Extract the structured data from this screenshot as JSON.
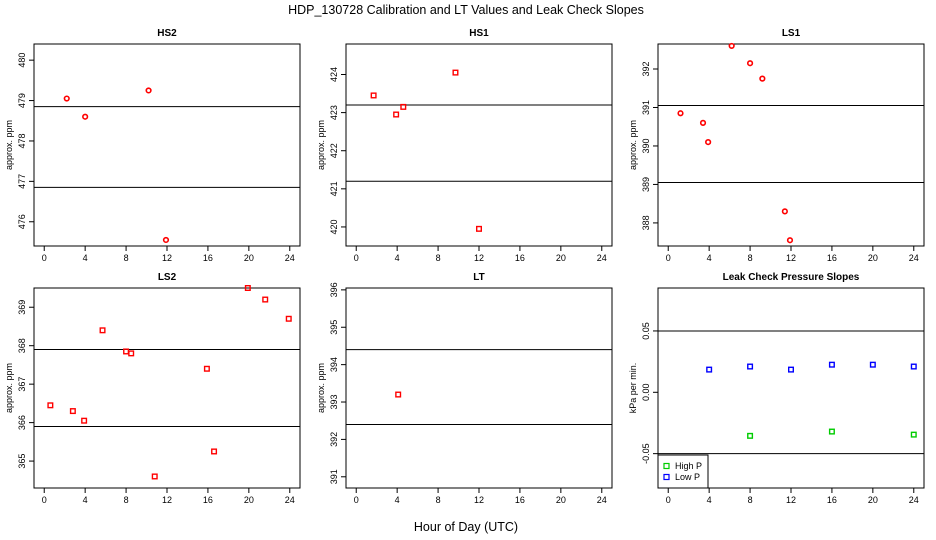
{
  "main_title": "HDP_130728  Calibration and LT Values and Leak Check Slopes",
  "x_axis_label": "Hour of Day (UTC)",
  "colors": {
    "points": "#ff0000",
    "high_p": "#00cc00",
    "low_p": "#0000ff",
    "lines": "#000000"
  },
  "chart_data": [
    {
      "type": "scatter",
      "title": "HS2",
      "ylabel": "approx. ppm",
      "xlim": [
        -1,
        25
      ],
      "ylim": [
        475.4,
        480.4
      ],
      "xticks": [
        0,
        4,
        8,
        12,
        16,
        20,
        24
      ],
      "yticks": [
        476,
        477,
        478,
        479,
        480
      ],
      "hlines": [
        478.85,
        476.85
      ],
      "series": [
        {
          "marker": "circle",
          "color": "#ff0000",
          "points": [
            [
              2.2,
              479.05
            ],
            [
              4.0,
              478.6
            ],
            [
              10.2,
              479.25
            ],
            [
              11.9,
              475.55
            ]
          ]
        }
      ]
    },
    {
      "type": "scatter",
      "title": "HS1",
      "ylabel": "approx. ppm",
      "xlim": [
        -1,
        25
      ],
      "ylim": [
        419.5,
        424.8
      ],
      "xticks": [
        0,
        4,
        8,
        12,
        16,
        20,
        24
      ],
      "yticks": [
        420,
        421,
        422,
        423,
        424
      ],
      "hlines": [
        423.2,
        421.2
      ],
      "series": [
        {
          "marker": "square",
          "color": "#ff0000",
          "points": [
            [
              1.7,
              423.45
            ],
            [
              3.9,
              422.95
            ],
            [
              4.6,
              423.15
            ],
            [
              9.7,
              424.05
            ],
            [
              12.0,
              419.95
            ]
          ]
        }
      ]
    },
    {
      "type": "scatter",
      "title": "LS1",
      "ylabel": "approx. ppm",
      "xlim": [
        -1,
        25
      ],
      "ylim": [
        387.4,
        392.65
      ],
      "xticks": [
        0,
        4,
        8,
        12,
        16,
        20,
        24
      ],
      "yticks": [
        388,
        389,
        390,
        391,
        392
      ],
      "hlines": [
        391.05,
        389.05
      ],
      "series": [
        {
          "marker": "circle",
          "color": "#ff0000",
          "points": [
            [
              1.2,
              390.85
            ],
            [
              3.4,
              390.6
            ],
            [
              3.9,
              390.1
            ],
            [
              6.2,
              392.6
            ],
            [
              8.0,
              392.15
            ],
            [
              9.2,
              391.75
            ],
            [
              11.4,
              388.3
            ],
            [
              11.9,
              387.55
            ]
          ]
        }
      ]
    },
    {
      "type": "scatter",
      "title": "LS2",
      "ylabel": "approx. ppm",
      "xlim": [
        -1,
        25
      ],
      "ylim": [
        364.3,
        369.5
      ],
      "xticks": [
        0,
        4,
        8,
        12,
        16,
        20,
        24
      ],
      "yticks": [
        365,
        366,
        367,
        368,
        369
      ],
      "hlines": [
        367.9,
        365.9
      ],
      "series": [
        {
          "marker": "square",
          "color": "#ff0000",
          "points": [
            [
              0.6,
              366.45
            ],
            [
              2.8,
              366.3
            ],
            [
              3.9,
              366.05
            ],
            [
              5.7,
              368.4
            ],
            [
              8.0,
              367.85
            ],
            [
              8.5,
              367.8
            ],
            [
              10.8,
              364.6
            ],
            [
              15.9,
              367.4
            ],
            [
              16.6,
              365.25
            ],
            [
              21.6,
              369.2
            ],
            [
              23.9,
              368.7
            ],
            [
              19.9,
              369.5
            ]
          ]
        }
      ]
    },
    {
      "type": "scatter",
      "title": "LT",
      "ylabel": "approx. ppm",
      "xlim": [
        -1,
        25
      ],
      "ylim": [
        390.7,
        396.05
      ],
      "xticks": [
        0,
        4,
        8,
        12,
        16,
        20,
        24
      ],
      "yticks": [
        391,
        392,
        393,
        394,
        395,
        396
      ],
      "hlines": [
        394.4,
        392.4
      ],
      "series": [
        {
          "marker": "square",
          "color": "#ff0000",
          "points": [
            [
              4.1,
              393.2
            ]
          ]
        }
      ]
    },
    {
      "type": "scatter",
      "title": "Leak Check Pressure Slopes",
      "ylabel": "kPa per min.",
      "xlim": [
        -1,
        25
      ],
      "ylim": [
        -0.078,
        0.085
      ],
      "xticks": [
        0,
        4,
        8,
        12,
        16,
        20,
        24
      ],
      "yticks": [
        -0.05,
        0.0,
        0.05
      ],
      "ytick_labels": [
        "-0.05",
        "0.00",
        "0.05"
      ],
      "hlines": [
        0.05,
        -0.05
      ],
      "legend": {
        "position": "bottom-left",
        "entries": [
          "High P",
          "Low P"
        ]
      },
      "series": [
        {
          "name": "High P",
          "marker": "square",
          "color": "#00cc00",
          "points": [
            [
              8,
              -0.0355
            ],
            [
              16,
              -0.032
            ],
            [
              24,
              -0.0345
            ]
          ]
        },
        {
          "name": "Low P",
          "marker": "square",
          "color": "#0000ff",
          "points": [
            [
              4,
              0.0185
            ],
            [
              8,
              0.021
            ],
            [
              12,
              0.0185
            ],
            [
              16,
              0.0225
            ],
            [
              20,
              0.0225
            ],
            [
              24,
              0.021
            ]
          ]
        }
      ]
    }
  ]
}
